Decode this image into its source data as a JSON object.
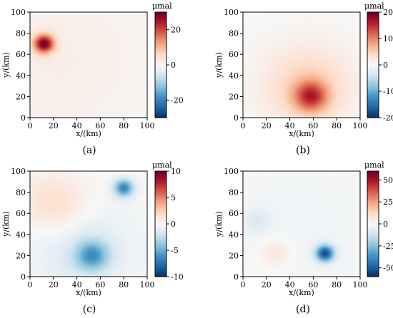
{
  "panels": [
    {
      "label": "(a)",
      "chart_data": {
        "type": "heatmap",
        "title": "",
        "xlabel": "x/(km)",
        "ylabel": "y/(km)",
        "xlim": [
          0,
          100
        ],
        "ylim": [
          0,
          100
        ],
        "xticks": [
          "0",
          "20",
          "40",
          "60",
          "80",
          "100"
        ],
        "yticks": [
          "0",
          "20",
          "40",
          "60",
          "80",
          "100"
        ],
        "colorbar": {
          "unit": "μmal",
          "min": -30,
          "max": 30,
          "ticks": [
            20,
            0,
            -20
          ],
          "tick_labels": [
            "20",
            "0",
            "-20"
          ]
        },
        "sources": [
          {
            "x": 12,
            "y": 70,
            "peak": 28,
            "sigma": 6
          },
          {
            "x": 25,
            "y": 55,
            "peak": 2,
            "sigma": 60
          }
        ]
      }
    },
    {
      "label": "(b)",
      "chart_data": {
        "type": "heatmap",
        "title": "",
        "xlabel": "x/(km)",
        "ylabel": "y/(km)",
        "xlim": [
          0,
          100
        ],
        "ylim": [
          0,
          100
        ],
        "xticks": [
          "0",
          "20",
          "40",
          "60",
          "80",
          "100"
        ],
        "yticks": [
          "0",
          "20",
          "40",
          "60",
          "80",
          "100"
        ],
        "colorbar": {
          "unit": "μmal",
          "min": -20,
          "max": 20,
          "ticks": [
            20,
            10,
            0,
            -10,
            -20
          ],
          "tick_labels": [
            "20",
            "10",
            "0",
            "-10",
            "-20"
          ]
        },
        "sources": [
          {
            "x": 58,
            "y": 20,
            "peak": 12,
            "sigma": 10
          },
          {
            "x": 55,
            "y": 30,
            "peak": 5,
            "sigma": 26
          }
        ]
      }
    },
    {
      "label": "(c)",
      "chart_data": {
        "type": "heatmap",
        "title": "",
        "xlabel": "x/(km)",
        "ylabel": "y/(km)",
        "xlim": [
          0,
          100
        ],
        "ylim": [
          0,
          100
        ],
        "xticks": [
          "0",
          "20",
          "40",
          "60",
          "80",
          "100"
        ],
        "yticks": [
          "0",
          "20",
          "40",
          "60",
          "80",
          "100"
        ],
        "colorbar": {
          "unit": "μmal",
          "min": -10,
          "max": 10,
          "ticks": [
            10,
            5,
            0,
            -5,
            -10
          ],
          "tick_labels": [
            "10",
            "5",
            "0",
            "-5",
            "-10"
          ]
        },
        "sources": [
          {
            "x": 80,
            "y": 84,
            "peak": -6.5,
            "sigma": 6
          },
          {
            "x": 53,
            "y": 20,
            "peak": -5,
            "sigma": 10
          },
          {
            "x": 45,
            "y": 25,
            "peak": -1.5,
            "sigma": 30
          },
          {
            "x": 22,
            "y": 68,
            "peak": 2,
            "sigma": 20
          }
        ]
      }
    },
    {
      "label": "(d)",
      "chart_data": {
        "type": "heatmap",
        "title": "",
        "xlabel": "x/(km)",
        "ylabel": "y/(km)",
        "xlim": [
          0,
          100
        ],
        "ylim": [
          0,
          100
        ],
        "xticks": [
          "0",
          "20",
          "40",
          "60",
          "80",
          "100"
        ],
        "yticks": [
          "0",
          "20",
          "40",
          "60",
          "80",
          "100"
        ],
        "colorbar": {
          "unit": "μmal",
          "min": -60,
          "max": 60,
          "ticks": [
            50,
            25,
            0,
            -25,
            -50
          ],
          "tick_labels": [
            "50",
            "25",
            "0",
            "-25",
            "-50"
          ]
        },
        "sources": [
          {
            "x": 70,
            "y": 22,
            "peak": -52,
            "sigma": 5.5
          },
          {
            "x": 12,
            "y": 52,
            "peak": -8,
            "sigma": 8
          },
          {
            "x": 28,
            "y": 22,
            "peak": 8,
            "sigma": 9
          },
          {
            "x": 50,
            "y": 50,
            "peak": -2,
            "sigma": 50
          }
        ]
      }
    }
  ]
}
